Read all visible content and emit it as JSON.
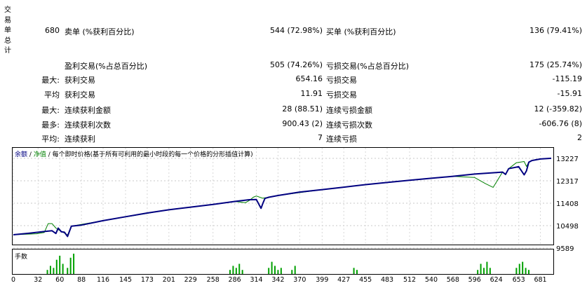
{
  "side_label": [
    "交",
    "易",
    "单",
    "总",
    "计"
  ],
  "stats": {
    "total_trades": "680",
    "short_label": "卖单 (%获利百分比)",
    "short_value": "544 (72.98%)",
    "long_label": "买单 (%获利百分比)",
    "long_value": "136 (79.41%)",
    "profit_trades_label": "盈利交易(%占总百分比)",
    "profit_trades_value": "505 (74.26%)",
    "loss_trades_label": "亏损交易(%占总百分比)",
    "loss_trades_value": "175 (25.74%)",
    "largest_prefix": "最大:",
    "largest_profit_label": "获利交易",
    "largest_profit_value": "654.16",
    "largest_loss_label": "亏损交易",
    "largest_loss_value": "-115.19",
    "average_prefix": "平均",
    "average_profit_label": "获利交易",
    "average_profit_value": "11.91",
    "average_loss_label": "亏损交易",
    "average_loss_value": "-15.91",
    "max_consec_prefix": "最大:",
    "max_consec_win_label": "连续获利金额",
    "max_consec_win_value": "28 (88.51)",
    "max_consec_loss_label": "连续亏损金额",
    "max_consec_loss_value": "12 (-359.82)",
    "maximal_prefix": "最多:",
    "maximal_consec_profit_label": "连续获利次数",
    "maximal_consec_profit_value": "900.43 (2)",
    "maximal_consec_loss_label": "连续亏损次数",
    "maximal_consec_loss_value": "-606.76 (8)",
    "avg_consec_prefix": "平均:",
    "avg_consec_win_label": "连续获利",
    "avg_consec_win_value": "7",
    "avg_consec_loss_label": "连续亏损",
    "avg_consec_loss_value": "2"
  },
  "legend": {
    "balance": "余额",
    "sep1": "/",
    "equity": "净值",
    "sep2": "/",
    "model": "每个即时价格(基于所有可利用的最小时段的每一个价格的分形插值计算)"
  },
  "volume_label": "手数",
  "colors": {
    "balance": "#000080",
    "equity": "#008000",
    "volume": "#00a000"
  },
  "chart_data": {
    "type": "line",
    "x_ticks": [
      0,
      32,
      60,
      88,
      116,
      145,
      173,
      201,
      229,
      258,
      286,
      314,
      342,
      370,
      399,
      427,
      455,
      483,
      512,
      540,
      568,
      596,
      624,
      653,
      681
    ],
    "y_ticks": [
      13227,
      12317,
      11408,
      10498,
      9589
    ],
    "ylim": [
      9589,
      13227
    ],
    "xlim": [
      0,
      695
    ],
    "series": [
      {
        "name": "余额",
        "x": [
          0,
          20,
          40,
          50,
          55,
          58,
          62,
          66,
          70,
          75,
          88,
          116,
          145,
          173,
          201,
          229,
          258,
          286,
          305,
          314,
          320,
          322,
          325,
          330,
          342,
          370,
          399,
          427,
          455,
          483,
          512,
          540,
          568,
          596,
          624,
          632,
          636,
          640,
          653,
          660,
          663,
          666,
          670,
          681,
          695
        ],
        "y": [
          10130,
          10190,
          10260,
          10290,
          10180,
          10400,
          10250,
          10230,
          10060,
          10480,
          10520,
          10700,
          10860,
          11010,
          11140,
          11250,
          11360,
          11480,
          11550,
          11560,
          11200,
          11370,
          11600,
          11650,
          11720,
          11860,
          11960,
          12060,
          12160,
          12250,
          12340,
          12420,
          12500,
          12590,
          12650,
          12670,
          12580,
          12810,
          12890,
          12560,
          12720,
          13070,
          13140,
          13200,
          13230
        ]
      },
      {
        "name": "净值",
        "x": [
          0,
          30,
          40,
          45,
          50,
          55,
          60,
          66,
          70,
          75,
          116,
          201,
          258,
          286,
          300,
          305,
          310,
          314,
          322,
          330,
          342,
          399,
          455,
          512,
          540,
          568,
          596,
          610,
          620,
          632,
          636,
          640,
          650,
          660,
          663,
          666,
          670,
          681,
          695
        ],
        "y": [
          10130,
          10170,
          10220,
          10580,
          10580,
          10400,
          10300,
          10200,
          10120,
          10480,
          10700,
          11140,
          11360,
          11480,
          11430,
          11520,
          11650,
          11700,
          11610,
          11650,
          11720,
          11960,
          12160,
          12340,
          12420,
          12500,
          12450,
          12200,
          12050,
          12670,
          12560,
          12810,
          13050,
          13100,
          12900,
          13070,
          13140,
          13200,
          13230
        ]
      }
    ],
    "volume": {
      "x": [
        44,
        48,
        52,
        56,
        60,
        64,
        70,
        74,
        78,
        280,
        284,
        288,
        292,
        296,
        330,
        334,
        338,
        342,
        346,
        360,
        364,
        440,
        444,
        600,
        604,
        608,
        612,
        616,
        650,
        654,
        658,
        662,
        666
      ],
      "y": [
        0.2,
        0.4,
        0.3,
        0.7,
        0.9,
        0.5,
        0.3,
        0.8,
        1.0,
        0.2,
        0.4,
        0.3,
        0.5,
        0.2,
        0.3,
        0.6,
        0.4,
        0.2,
        0.3,
        0.2,
        0.4,
        0.3,
        0.2,
        0.2,
        0.5,
        0.3,
        0.6,
        0.3,
        0.3,
        0.5,
        0.6,
        0.3,
        0.2
      ]
    }
  }
}
